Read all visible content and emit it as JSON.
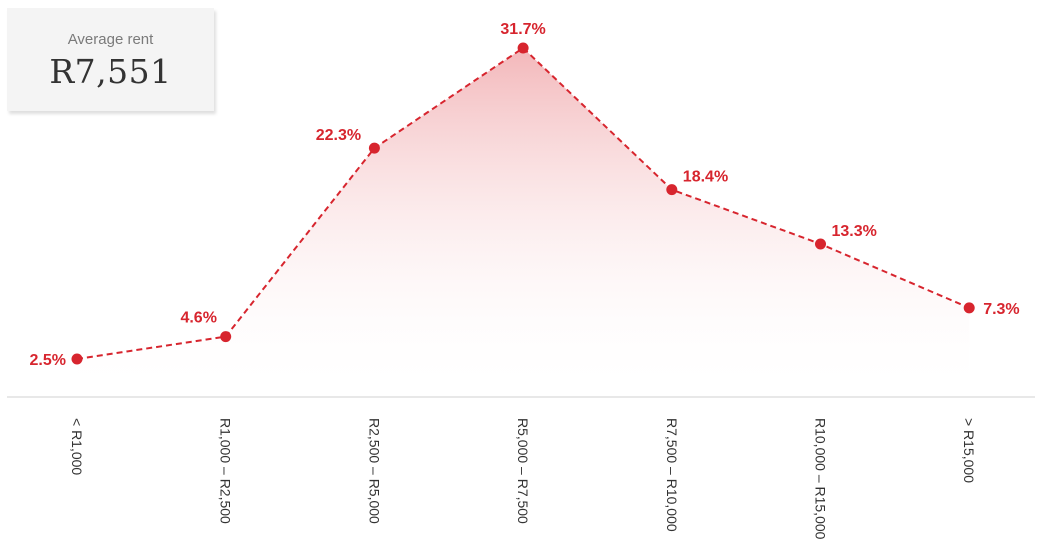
{
  "summary": {
    "label": "Average rent",
    "value": "R7,551"
  },
  "colors": {
    "accent": "#d7252e",
    "area_fill": "#f2b8bb",
    "axis": "#d0d0d0",
    "tick_text": "#333333"
  },
  "chart_data": {
    "type": "area",
    "title": "",
    "xlabel": "",
    "ylabel": "",
    "grid": false,
    "legend": "none",
    "categories": [
      "< R1,000",
      "R1,000 – R2,500",
      "R2,500 – R5,000",
      "R5,000 – R7,500",
      "R7,500 – R10,000",
      "R10,000 – R15,000",
      "> R15,000"
    ],
    "values": [
      2.5,
      4.6,
      22.3,
      31.7,
      18.4,
      13.3,
      7.3
    ],
    "value_labels": [
      "2.5%",
      "4.6%",
      "22.3%",
      "31.7%",
      "18.4%",
      "13.3%",
      "7.3%"
    ],
    "ylim": [
      0,
      31.7
    ]
  }
}
